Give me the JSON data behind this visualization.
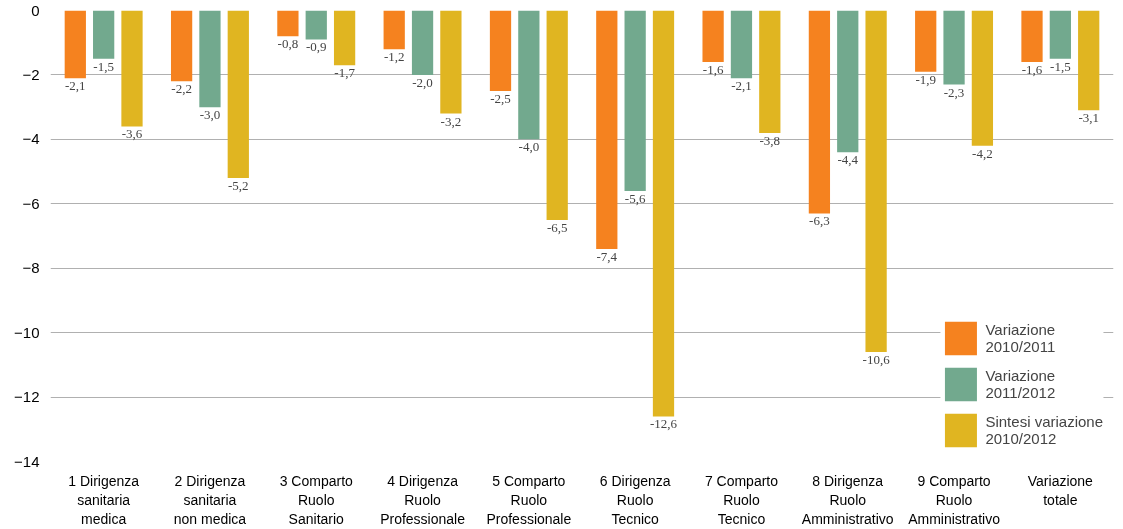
{
  "chart_data": {
    "type": "bar",
    "categories": [
      "1 Dirigenza\nsanitaria\nmedica",
      "2 Dirigenza\nsanitaria\nnon medica",
      "3 Comparto\nRuolo\nSanitario",
      "4 Dirigenza\nRuolo\nProfessionale",
      "5 Comparto\nRuolo\nProfessionale",
      "6 Dirigenza\nRuolo\nTecnico",
      "7 Comparto\nRuolo\nTecnico",
      "8 Dirigenza\nRuolo\nAmministrativo",
      "9 Comparto\nRuolo\nAmministrativo",
      "Variazione\ntotale"
    ],
    "series": [
      {
        "name": "Variazione\n2010/2011",
        "color": "#f5821f",
        "values": [
          -2.1,
          -2.2,
          -0.8,
          -1.2,
          -2.5,
          -7.4,
          -1.6,
          -6.3,
          -1.9,
          -1.6
        ],
        "value_labels": [
          "-2,1",
          "-2,2",
          "-0,8",
          "-1,2",
          "-2,5",
          "-7,4",
          "-1,6",
          "-6,3",
          "-1,9",
          "-1,6"
        ]
      },
      {
        "name": "Variazione\n2011/2012",
        "color": "#72a98e",
        "values": [
          -1.5,
          -3.0,
          -0.9,
          -2.0,
          -4.0,
          -5.6,
          -2.1,
          -4.4,
          -2.3,
          -1.5
        ],
        "value_labels": [
          "-1,5",
          "-3,0",
          "-0,9",
          "-2,0",
          "-4,0",
          "-5,6",
          "-2,1",
          "-4,4",
          "-2,3",
          "-1,5"
        ]
      },
      {
        "name": "Sintesi variazione\n2010/2012",
        "color": "#e0b521",
        "values": [
          -3.6,
          -5.2,
          -1.7,
          -3.2,
          -6.5,
          -12.6,
          -3.8,
          -10.6,
          -4.2,
          -3.1
        ],
        "value_labels": [
          "-3,6",
          "-5,2",
          "-1,7",
          "-3,2",
          "-6,5",
          "-12,6",
          "-3,8",
          "-10,6",
          "-4,2",
          "-3,1"
        ]
      }
    ],
    "ylim": [
      -14,
      0
    ],
    "yticks": [
      0,
      -2,
      -4,
      -6,
      -8,
      -10,
      -12,
      -14
    ],
    "grid": "y",
    "legend": "bottom right"
  }
}
